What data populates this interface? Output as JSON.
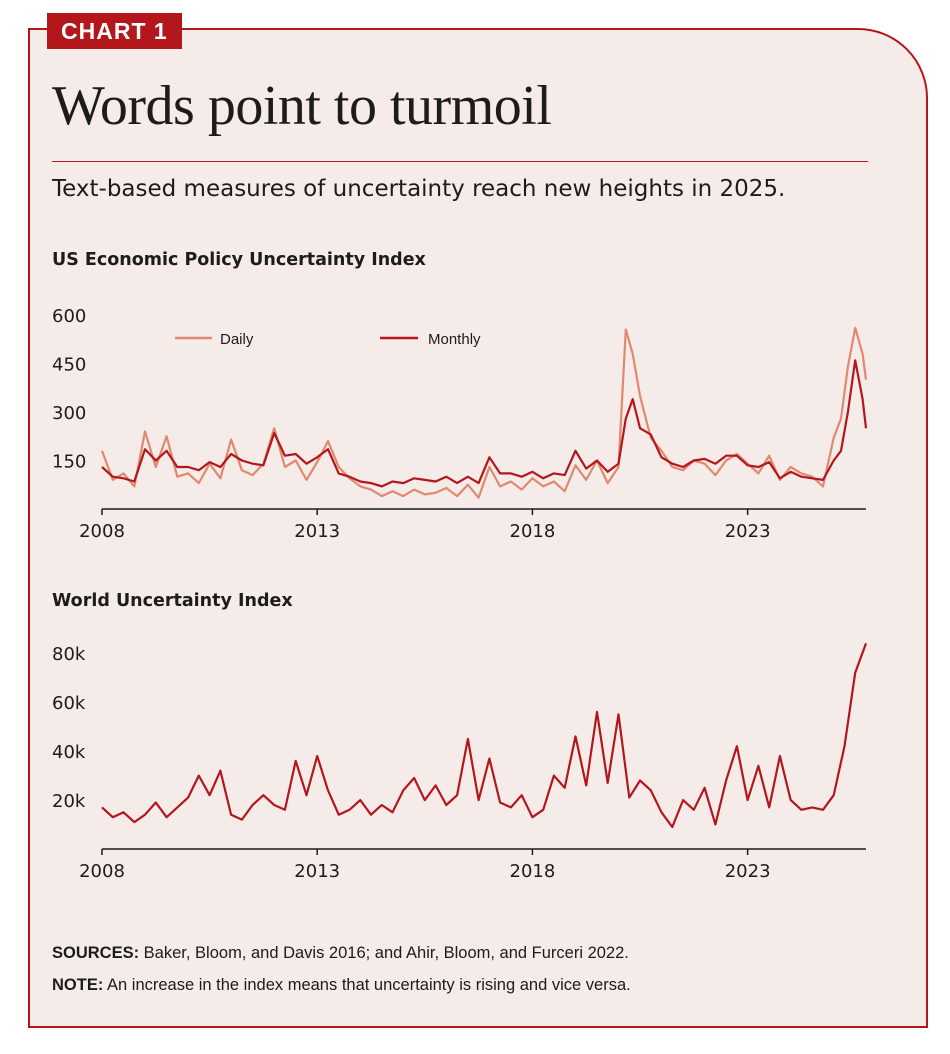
{
  "header": {
    "tag": "CHART 1",
    "title": "Words point to turmoil",
    "subtitle": "Text-based measures of uncertainty reach new heights in 2025."
  },
  "colors": {
    "accent": "#b3171c",
    "daily": "#df8a6f",
    "monthly": "#b3171c",
    "background": "#f5ebe8"
  },
  "chart_data": [
    {
      "type": "line",
      "title": "US Economic Policy Uncertainty Index",
      "xlim": [
        2008,
        2025.75
      ],
      "ylim": [
        0,
        600
      ],
      "yticks": [
        150,
        300,
        450,
        600
      ],
      "xticks": [
        2008,
        2013,
        2018,
        2023
      ],
      "legend": "top-left",
      "grid": false,
      "series": [
        {
          "name": "Daily",
          "color": "#df8a6f",
          "x": [
            2008.0,
            2008.25,
            2008.5,
            2008.75,
            2009.0,
            2009.25,
            2009.5,
            2009.75,
            2010.0,
            2010.25,
            2010.5,
            2010.75,
            2011.0,
            2011.25,
            2011.5,
            2011.75,
            2012.0,
            2012.25,
            2012.5,
            2012.75,
            2013.0,
            2013.25,
            2013.5,
            2013.75,
            2014.0,
            2014.25,
            2014.5,
            2014.75,
            2015.0,
            2015.25,
            2015.5,
            2015.75,
            2016.0,
            2016.25,
            2016.5,
            2016.75,
            2017.0,
            2017.25,
            2017.5,
            2017.75,
            2018.0,
            2018.25,
            2018.5,
            2018.75,
            2019.0,
            2019.25,
            2019.5,
            2019.75,
            2020.0,
            2020.17,
            2020.33,
            2020.5,
            2020.75,
            2021.0,
            2021.25,
            2021.5,
            2021.75,
            2022.0,
            2022.25,
            2022.5,
            2022.75,
            2023.0,
            2023.25,
            2023.5,
            2023.75,
            2024.0,
            2024.25,
            2024.5,
            2024.75,
            2025.0,
            2025.17,
            2025.33,
            2025.5,
            2025.67,
            2025.75
          ],
          "values": [
            180,
            90,
            110,
            70,
            240,
            130,
            225,
            100,
            110,
            80,
            140,
            95,
            215,
            120,
            105,
            140,
            250,
            130,
            150,
            90,
            145,
            210,
            130,
            95,
            70,
            60,
            40,
            55,
            40,
            60,
            45,
            50,
            65,
            40,
            75,
            35,
            130,
            70,
            85,
            60,
            95,
            70,
            85,
            55,
            135,
            90,
            150,
            80,
            130,
            555,
            480,
            350,
            220,
            180,
            130,
            120,
            150,
            140,
            105,
            150,
            170,
            140,
            110,
            165,
            90,
            130,
            110,
            100,
            70,
            220,
            280,
            440,
            560,
            480,
            400
          ]
        },
        {
          "name": "Monthly",
          "color": "#b3171c",
          "x": [
            2008.0,
            2008.25,
            2008.5,
            2008.75,
            2009.0,
            2009.25,
            2009.5,
            2009.75,
            2010.0,
            2010.25,
            2010.5,
            2010.75,
            2011.0,
            2011.25,
            2011.5,
            2011.75,
            2012.0,
            2012.25,
            2012.5,
            2012.75,
            2013.0,
            2013.25,
            2013.5,
            2013.75,
            2014.0,
            2014.25,
            2014.5,
            2014.75,
            2015.0,
            2015.25,
            2015.5,
            2015.75,
            2016.0,
            2016.25,
            2016.5,
            2016.75,
            2017.0,
            2017.25,
            2017.5,
            2017.75,
            2018.0,
            2018.25,
            2018.5,
            2018.75,
            2019.0,
            2019.25,
            2019.5,
            2019.75,
            2020.0,
            2020.17,
            2020.33,
            2020.5,
            2020.75,
            2021.0,
            2021.25,
            2021.5,
            2021.75,
            2022.0,
            2022.25,
            2022.5,
            2022.75,
            2023.0,
            2023.25,
            2023.5,
            2023.75,
            2024.0,
            2024.25,
            2024.5,
            2024.75,
            2025.0,
            2025.17,
            2025.33,
            2025.5,
            2025.67,
            2025.75
          ],
          "values": [
            130,
            100,
            95,
            85,
            185,
            150,
            180,
            130,
            130,
            120,
            145,
            130,
            170,
            150,
            140,
            135,
            235,
            165,
            170,
            140,
            160,
            185,
            110,
            100,
            85,
            80,
            70,
            85,
            80,
            95,
            90,
            85,
            100,
            80,
            100,
            80,
            160,
            110,
            110,
            100,
            115,
            95,
            110,
            105,
            180,
            125,
            150,
            115,
            140,
            280,
            340,
            250,
            230,
            160,
            140,
            130,
            150,
            155,
            140,
            165,
            165,
            135,
            130,
            145,
            95,
            115,
            100,
            95,
            90,
            150,
            180,
            300,
            460,
            340,
            250
          ]
        }
      ]
    },
    {
      "type": "line",
      "title": "World Uncertainty Index",
      "xlim": [
        2008,
        2025.75
      ],
      "ylim": [
        0,
        85000
      ],
      "yticks": [
        20000,
        40000,
        60000,
        80000
      ],
      "ytick_labels": [
        "20k",
        "40k",
        "60k",
        "80k"
      ],
      "xticks": [
        2008,
        2013,
        2018,
        2023
      ],
      "grid": false,
      "series": [
        {
          "color": "#b3171c",
          "x": [
            2008.0,
            2008.25,
            2008.5,
            2008.75,
            2009.0,
            2009.25,
            2009.5,
            2009.75,
            2010.0,
            2010.25,
            2010.5,
            2010.75,
            2011.0,
            2011.25,
            2011.5,
            2011.75,
            2012.0,
            2012.25,
            2012.5,
            2012.75,
            2013.0,
            2013.25,
            2013.5,
            2013.75,
            2014.0,
            2014.25,
            2014.5,
            2014.75,
            2015.0,
            2015.25,
            2015.5,
            2015.75,
            2016.0,
            2016.25,
            2016.5,
            2016.75,
            2017.0,
            2017.25,
            2017.5,
            2017.75,
            2018.0,
            2018.25,
            2018.5,
            2018.75,
            2019.0,
            2019.25,
            2019.5,
            2019.75,
            2020.0,
            2020.25,
            2020.5,
            2020.75,
            2021.0,
            2021.25,
            2021.5,
            2021.75,
            2022.0,
            2022.25,
            2022.5,
            2022.75,
            2023.0,
            2023.25,
            2023.5,
            2023.75,
            2024.0,
            2024.25,
            2024.5,
            2024.75,
            2025.0,
            2025.25,
            2025.5,
            2025.75
          ],
          "values": [
            17000,
            13000,
            15000,
            11000,
            14000,
            19000,
            13000,
            17000,
            21000,
            30000,
            22000,
            32000,
            14000,
            12000,
            18000,
            22000,
            18000,
            16000,
            36000,
            22000,
            38000,
            24000,
            14000,
            16000,
            20000,
            14000,
            18000,
            15000,
            24000,
            29000,
            20000,
            26000,
            18000,
            22000,
            45000,
            20000,
            37000,
            19000,
            17000,
            22000,
            13000,
            16000,
            30000,
            25000,
            46000,
            26000,
            56000,
            27000,
            55000,
            21000,
            28000,
            24000,
            15000,
            9000,
            20000,
            16000,
            25000,
            10000,
            28000,
            42000,
            20000,
            34000,
            17000,
            38000,
            20000,
            16000,
            17000,
            16000,
            22000,
            42000,
            72000,
            84000
          ]
        }
      ]
    }
  ],
  "axes": {
    "chart1": {
      "y": [
        "150",
        "300",
        "450",
        "600"
      ],
      "x": [
        "2008",
        "2013",
        "2018",
        "2023"
      ]
    },
    "chart2": {
      "y": [
        "20k",
        "40k",
        "60k",
        "80k"
      ],
      "x": [
        "2008",
        "2013",
        "2018",
        "2023"
      ]
    }
  },
  "footer": {
    "sources_label": "SOURCES:",
    "sources_text": " Baker, Bloom, and Davis 2016; and Ahir, Bloom, and Furceri 2022.",
    "note_label": "NOTE:",
    "note_text": " An increase in the index means that uncertainty is rising and vice versa."
  }
}
